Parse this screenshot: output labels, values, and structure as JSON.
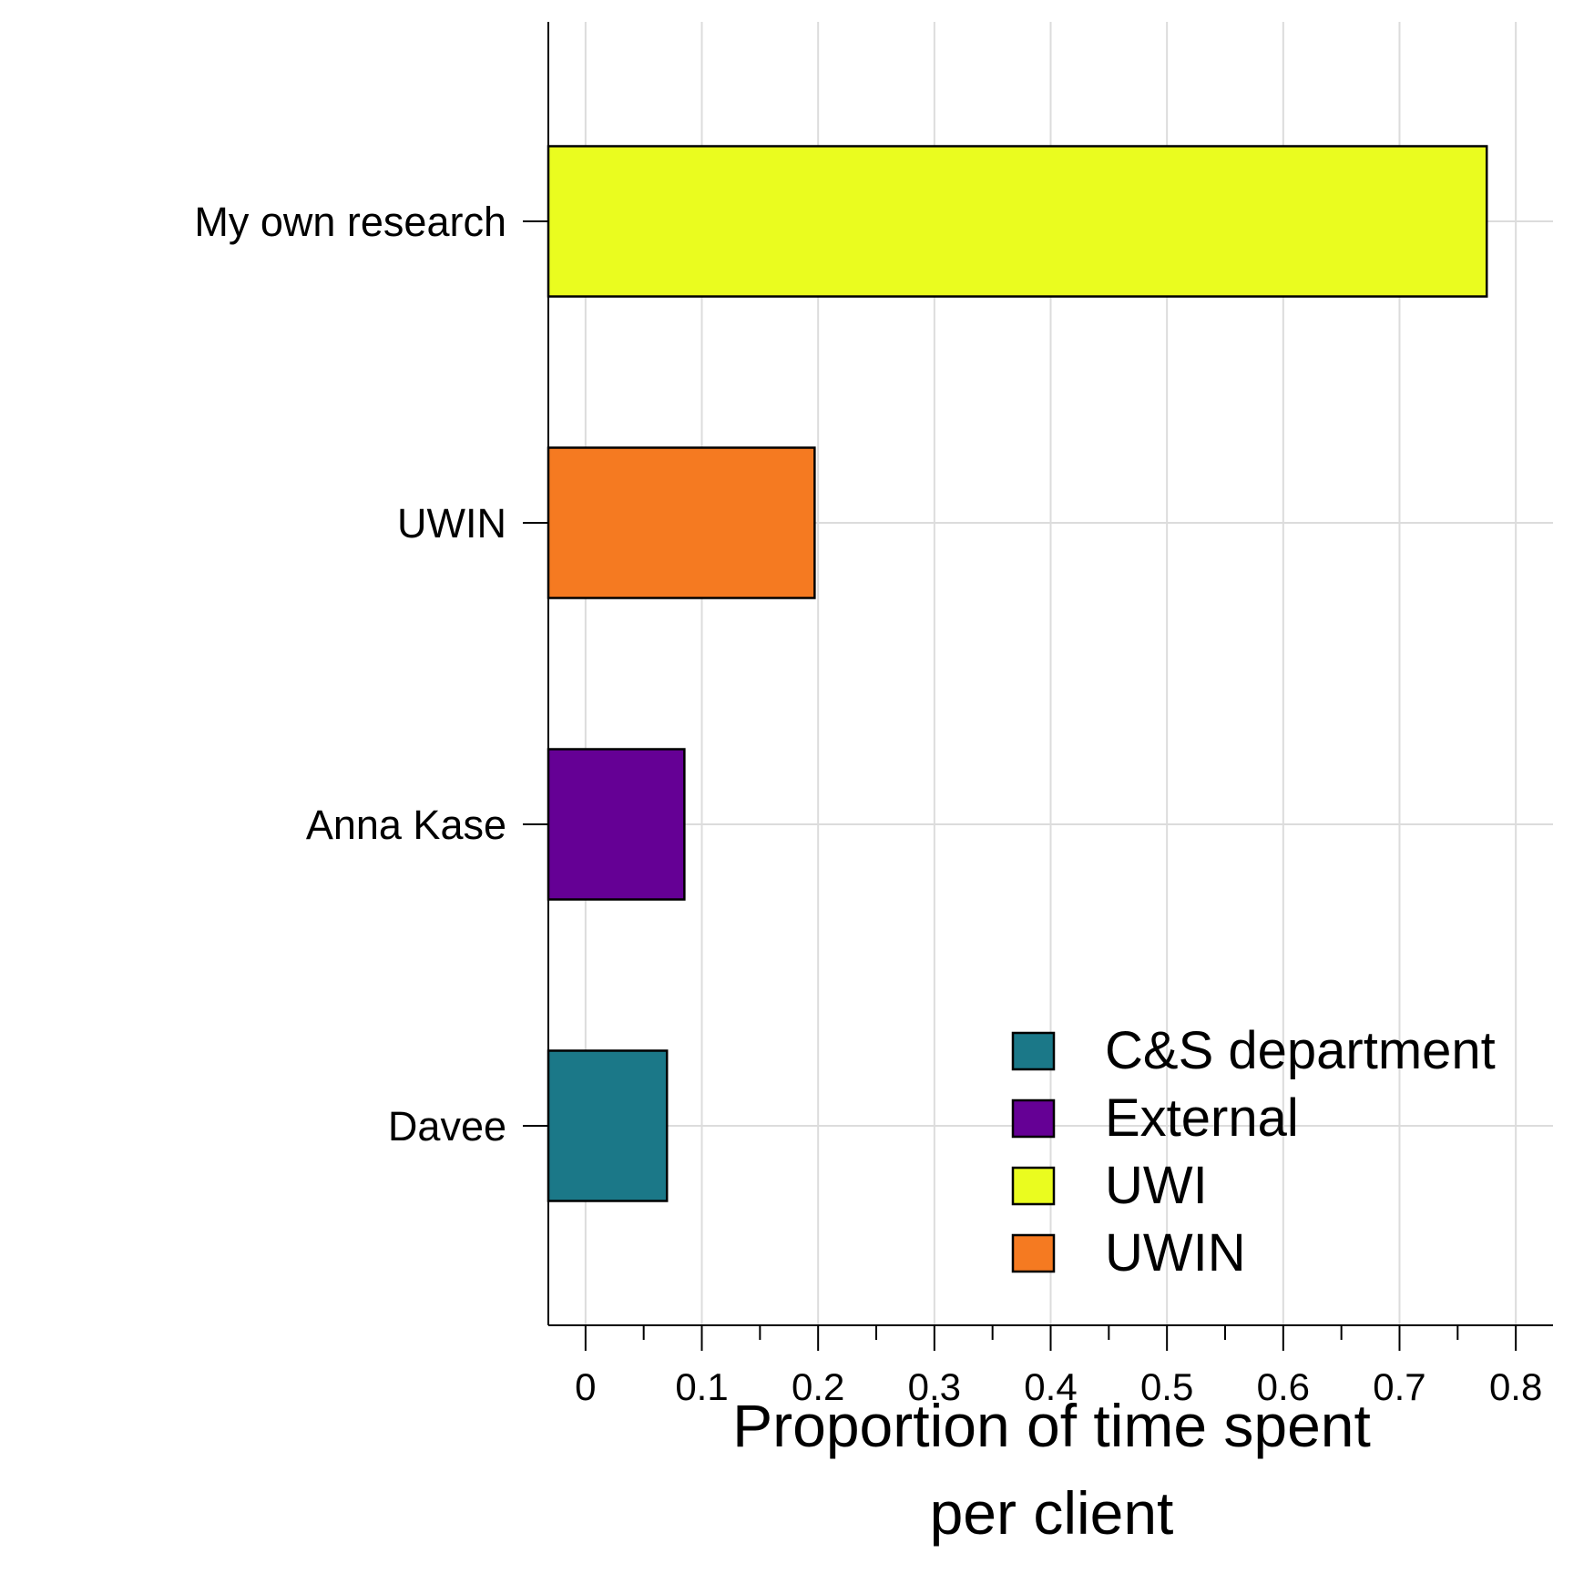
{
  "chart_data": {
    "type": "bar",
    "orientation": "horizontal",
    "categories": [
      "My own research",
      "UWIN",
      "Anna Kase",
      "Davee"
    ],
    "values": [
      0.775,
      0.197,
      0.085,
      0.07
    ],
    "groups": [
      "UWI",
      "UWIN",
      "External",
      "C&S department"
    ],
    "xlabel": [
      "Proportion of time spent",
      "per client"
    ],
    "ylabel": "",
    "xlim": [
      -0.032,
      0.832
    ],
    "xticks": [
      0,
      0.1,
      0.2,
      0.3,
      0.4,
      0.5,
      0.6,
      0.7,
      0.8
    ],
    "xtick_labels": [
      "0",
      "0.1",
      "0.2",
      "0.3",
      "0.4",
      "0.5",
      "0.6",
      "0.7",
      "0.8"
    ],
    "grid": true,
    "legend": {
      "placement": "bottom-right",
      "entries": [
        {
          "label": "C&S department",
          "color": "#1b7888"
        },
        {
          "label": "External",
          "color": "#650095"
        },
        {
          "label": "UWI",
          "color": "#eafc1f"
        },
        {
          "label": "UWIN",
          "color": "#f57a21"
        }
      ]
    }
  }
}
